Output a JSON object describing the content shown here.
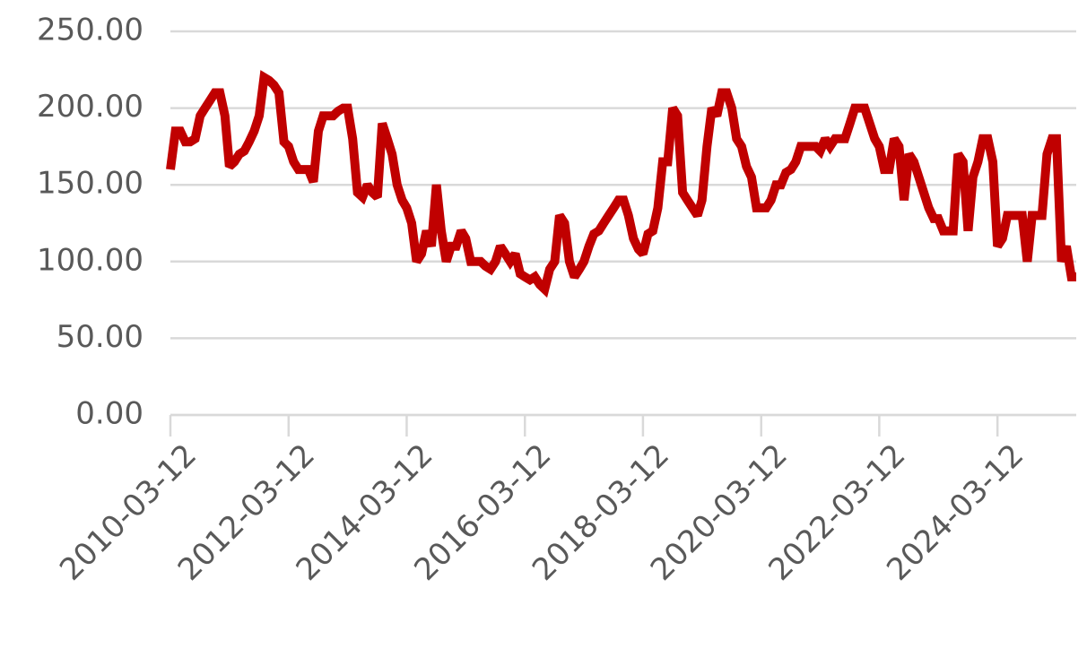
{
  "chart_data": {
    "type": "line",
    "x": [
      "2010-03-12",
      "2010-04-12",
      "2010-05-12",
      "2010-06-12",
      "2010-07-12",
      "2010-08-12",
      "2010-09-12",
      "2010-10-12",
      "2010-11-12",
      "2010-12-12",
      "2011-01-12",
      "2011-02-12",
      "2011-03-12",
      "2011-04-12",
      "2011-05-12",
      "2011-06-12",
      "2011-07-12",
      "2011-08-12",
      "2011-09-12",
      "2011-10-12",
      "2011-11-12",
      "2011-12-12",
      "2012-01-12",
      "2012-02-12",
      "2012-03-12",
      "2012-04-12",
      "2012-05-12",
      "2012-06-12",
      "2012-07-12",
      "2012-08-12",
      "2012-09-12",
      "2012-10-12",
      "2012-11-12",
      "2012-12-12",
      "2013-01-12",
      "2013-02-12",
      "2013-03-12",
      "2013-04-12",
      "2013-05-12",
      "2013-06-12",
      "2013-07-12",
      "2013-08-12",
      "2013-09-12",
      "2013-10-12",
      "2013-11-12",
      "2013-12-12",
      "2014-01-12",
      "2014-02-12",
      "2014-03-12",
      "2014-04-12",
      "2014-05-12",
      "2014-06-12",
      "2014-07-12",
      "2014-08-12",
      "2014-09-12",
      "2014-10-12",
      "2014-11-12",
      "2014-12-12",
      "2015-01-12",
      "2015-02-12",
      "2015-03-12",
      "2015-04-12",
      "2015-05-12",
      "2015-06-12",
      "2015-07-12",
      "2015-08-12",
      "2015-09-12",
      "2015-10-12",
      "2015-11-12",
      "2015-12-12",
      "2016-01-12",
      "2016-02-12",
      "2016-03-12",
      "2016-04-12",
      "2016-05-12",
      "2016-06-12",
      "2016-07-12",
      "2016-08-12",
      "2016-09-12",
      "2016-10-12",
      "2016-11-12",
      "2016-12-12",
      "2017-01-12",
      "2017-02-12",
      "2017-03-12",
      "2017-04-12",
      "2017-05-12",
      "2017-06-12",
      "2017-07-12",
      "2017-08-12",
      "2017-09-12",
      "2017-10-12",
      "2017-11-12",
      "2017-12-12",
      "2018-01-12",
      "2018-02-12",
      "2018-03-12",
      "2018-04-12",
      "2018-05-12",
      "2018-06-12",
      "2018-07-12",
      "2018-08-12",
      "2018-09-12",
      "2018-10-12",
      "2018-11-12",
      "2018-12-12",
      "2019-01-12",
      "2019-02-12",
      "2019-03-12",
      "2019-04-12",
      "2019-05-12",
      "2019-06-12",
      "2019-07-12",
      "2019-08-12",
      "2019-09-12",
      "2019-10-12",
      "2019-11-12",
      "2019-12-12",
      "2020-01-12",
      "2020-02-12",
      "2020-03-12",
      "2020-04-12",
      "2020-05-12",
      "2020-06-12",
      "2020-07-12",
      "2020-08-12",
      "2020-09-12",
      "2020-10-12",
      "2020-11-12",
      "2020-12-12",
      "2021-01-12",
      "2021-02-12",
      "2021-03-12",
      "2021-04-12",
      "2021-05-12",
      "2021-06-12",
      "2021-07-12",
      "2021-08-12",
      "2021-09-12",
      "2021-10-12",
      "2021-11-12",
      "2021-12-12",
      "2022-01-12",
      "2022-02-12",
      "2022-03-12",
      "2022-04-12",
      "2022-05-12",
      "2022-06-12",
      "2022-07-12",
      "2022-08-12",
      "2022-09-12",
      "2022-10-12",
      "2022-11-12",
      "2022-12-12",
      "2023-01-12",
      "2023-02-12",
      "2023-03-12",
      "2023-04-12",
      "2023-05-12",
      "2023-06-12",
      "2023-07-12",
      "2023-08-12",
      "2023-09-12",
      "2023-10-12",
      "2023-11-12",
      "2023-12-12",
      "2024-01-12",
      "2024-02-12",
      "2024-03-12",
      "2024-04-12",
      "2024-05-12",
      "2024-06-12",
      "2024-07-12",
      "2024-08-12",
      "2024-09-12",
      "2024-10-12",
      "2024-11-12",
      "2024-12-12",
      "2025-01-12",
      "2025-02-12",
      "2025-03-12",
      "2025-04-12",
      "2025-05-12",
      "2025-06-12",
      "2025-07-12"
    ],
    "series": [
      {
        "color": "#c00000",
        "values": [
          160,
          185,
          185,
          178,
          178,
          180,
          195,
          200,
          205,
          210,
          210,
          195,
          162,
          165,
          170,
          172,
          178,
          185,
          195,
          220,
          218,
          215,
          210,
          178,
          175,
          165,
          160,
          160,
          160,
          152,
          185,
          195,
          195,
          195,
          198,
          200,
          200,
          180,
          145,
          142,
          150,
          145,
          142,
          190,
          180,
          170,
          150,
          140,
          135,
          125,
          100,
          105,
          120,
          110,
          150,
          120,
          100,
          110,
          110,
          120,
          115,
          100,
          100,
          100,
          97,
          95,
          100,
          110,
          105,
          100,
          105,
          92,
          90,
          88,
          90,
          85,
          82,
          95,
          100,
          130,
          125,
          100,
          90,
          95,
          100,
          110,
          118,
          120,
          125,
          130,
          135,
          140,
          140,
          130,
          115,
          108,
          105,
          118,
          120,
          135,
          165,
          165,
          200,
          195,
          145,
          140,
          135,
          130,
          140,
          175,
          200,
          195,
          210,
          210,
          200,
          180,
          175,
          162,
          155,
          135,
          135,
          135,
          140,
          150,
          150,
          158,
          160,
          165,
          175,
          175,
          175,
          175,
          172,
          180,
          175,
          180,
          180,
          180,
          190,
          200,
          200,
          200,
          190,
          180,
          175,
          160,
          160,
          180,
          175,
          140,
          170,
          165,
          155,
          145,
          135,
          128,
          128,
          120,
          120,
          120,
          170,
          165,
          120,
          155,
          165,
          180,
          180,
          165,
          110,
          115,
          130,
          130,
          130,
          130,
          100,
          130,
          130,
          130,
          170,
          180,
          180,
          100,
          110,
          90,
          90
        ]
      }
    ],
    "xlim": [
      "2010-03-12",
      "2025-07-12"
    ],
    "xticks": [
      "2010-03-12",
      "2012-03-12",
      "2014-03-12",
      "2016-03-12",
      "2018-03-12",
      "2020-03-12",
      "2022-03-12",
      "2024-03-12"
    ],
    "ylim": [
      0,
      250
    ],
    "yticks": [
      {
        "value": 0,
        "label": "0.00"
      },
      {
        "value": 50,
        "label": "50.00"
      },
      {
        "value": 100,
        "label": "100.00"
      },
      {
        "value": 150,
        "label": "150.00"
      },
      {
        "value": 200,
        "label": "200.00"
      },
      {
        "value": 250,
        "label": "250.00"
      }
    ],
    "grid": true
  }
}
